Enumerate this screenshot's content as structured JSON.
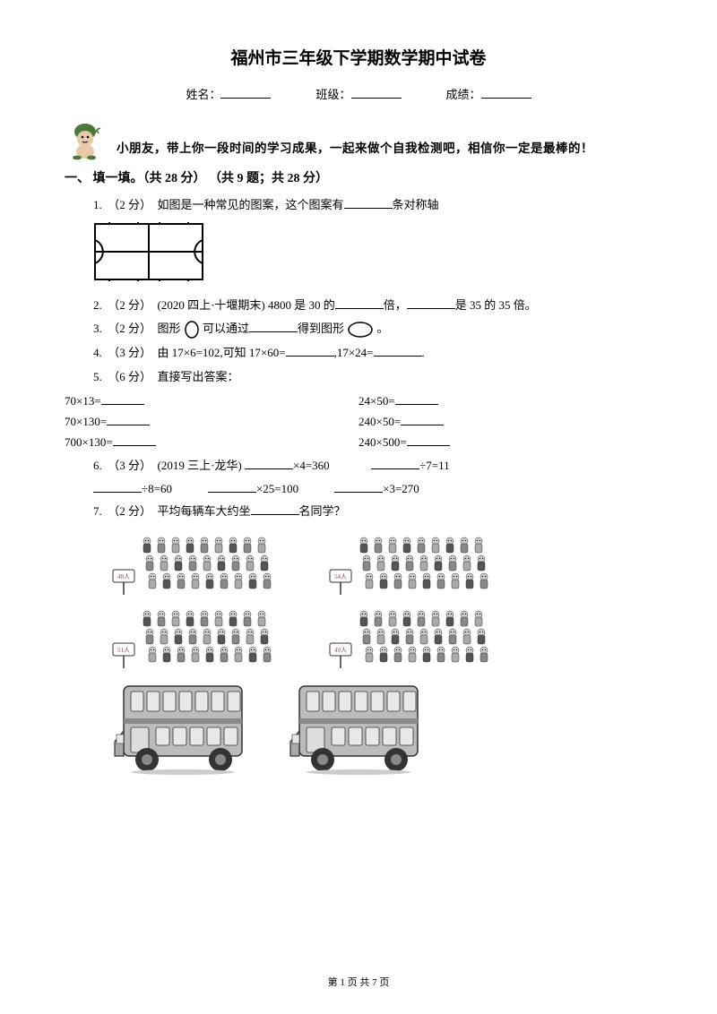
{
  "title": "福州市三年级下学期数学期中试卷",
  "info": {
    "name_label": "姓名：",
    "class_label": "班级：",
    "score_label": "成绩："
  },
  "intro": "小朋友，带上你一段时间的学习成果，一起来做个自我检测吧，相信你一定是最棒的！",
  "section1": "一、 填一填。（共 28 分） （共 9 题；共 28 分）",
  "q1": {
    "pre": "1.　（2 分）　如图是一种常见的图案，这个图案有",
    "post": "条对称轴"
  },
  "q2": {
    "pre": "2.　（2 分）　(2020 四上·十堰期末) 4800 是 30 的",
    "mid": "倍，",
    "post": "是 35 的 35 倍。"
  },
  "q3": {
    "pre": "3.　（2 分）　图形 ",
    "mid": " 可以通过",
    "mid2": "得到图形 ",
    "post": " 。"
  },
  "q4": {
    "pre": "4.　（3 分）　由 17×6=102,可知 17×60=",
    "mid": ",17×24=",
    "post": "."
  },
  "q5": {
    "label": "5.　（6 分）　直接写出答案："
  },
  "calc": {
    "l1": "70×13=",
    "r1": "24×50=",
    "l2": "70×130=",
    "r2": "240×50=",
    "l3": "700×130=",
    "r3": "240×500="
  },
  "q6": {
    "pre": "6.　（3 分）　(2019 三上·龙华) ",
    "a": "×4=360",
    "b": "÷7=11",
    "c": "÷8=60",
    "d": "×25=100",
    "e": "×3=270"
  },
  "q7": {
    "pre": "7.　（2 分）　平均每辆车大约坐",
    "post": "名同学？"
  },
  "signs": [
    "48人",
    "54人",
    "51人",
    "49人"
  ],
  "colors": {
    "mascot_green": "#4a7a3a",
    "mascot_skin": "#e8c9a8",
    "sign_red": "#a84040",
    "sign_border": "#333",
    "crowd_gray": "#777",
    "crowd_dark": "#333",
    "bus_body": "#999",
    "bus_dark": "#444",
    "bus_window": "#ddd"
  },
  "footer": "第 1 页 共 7 页"
}
